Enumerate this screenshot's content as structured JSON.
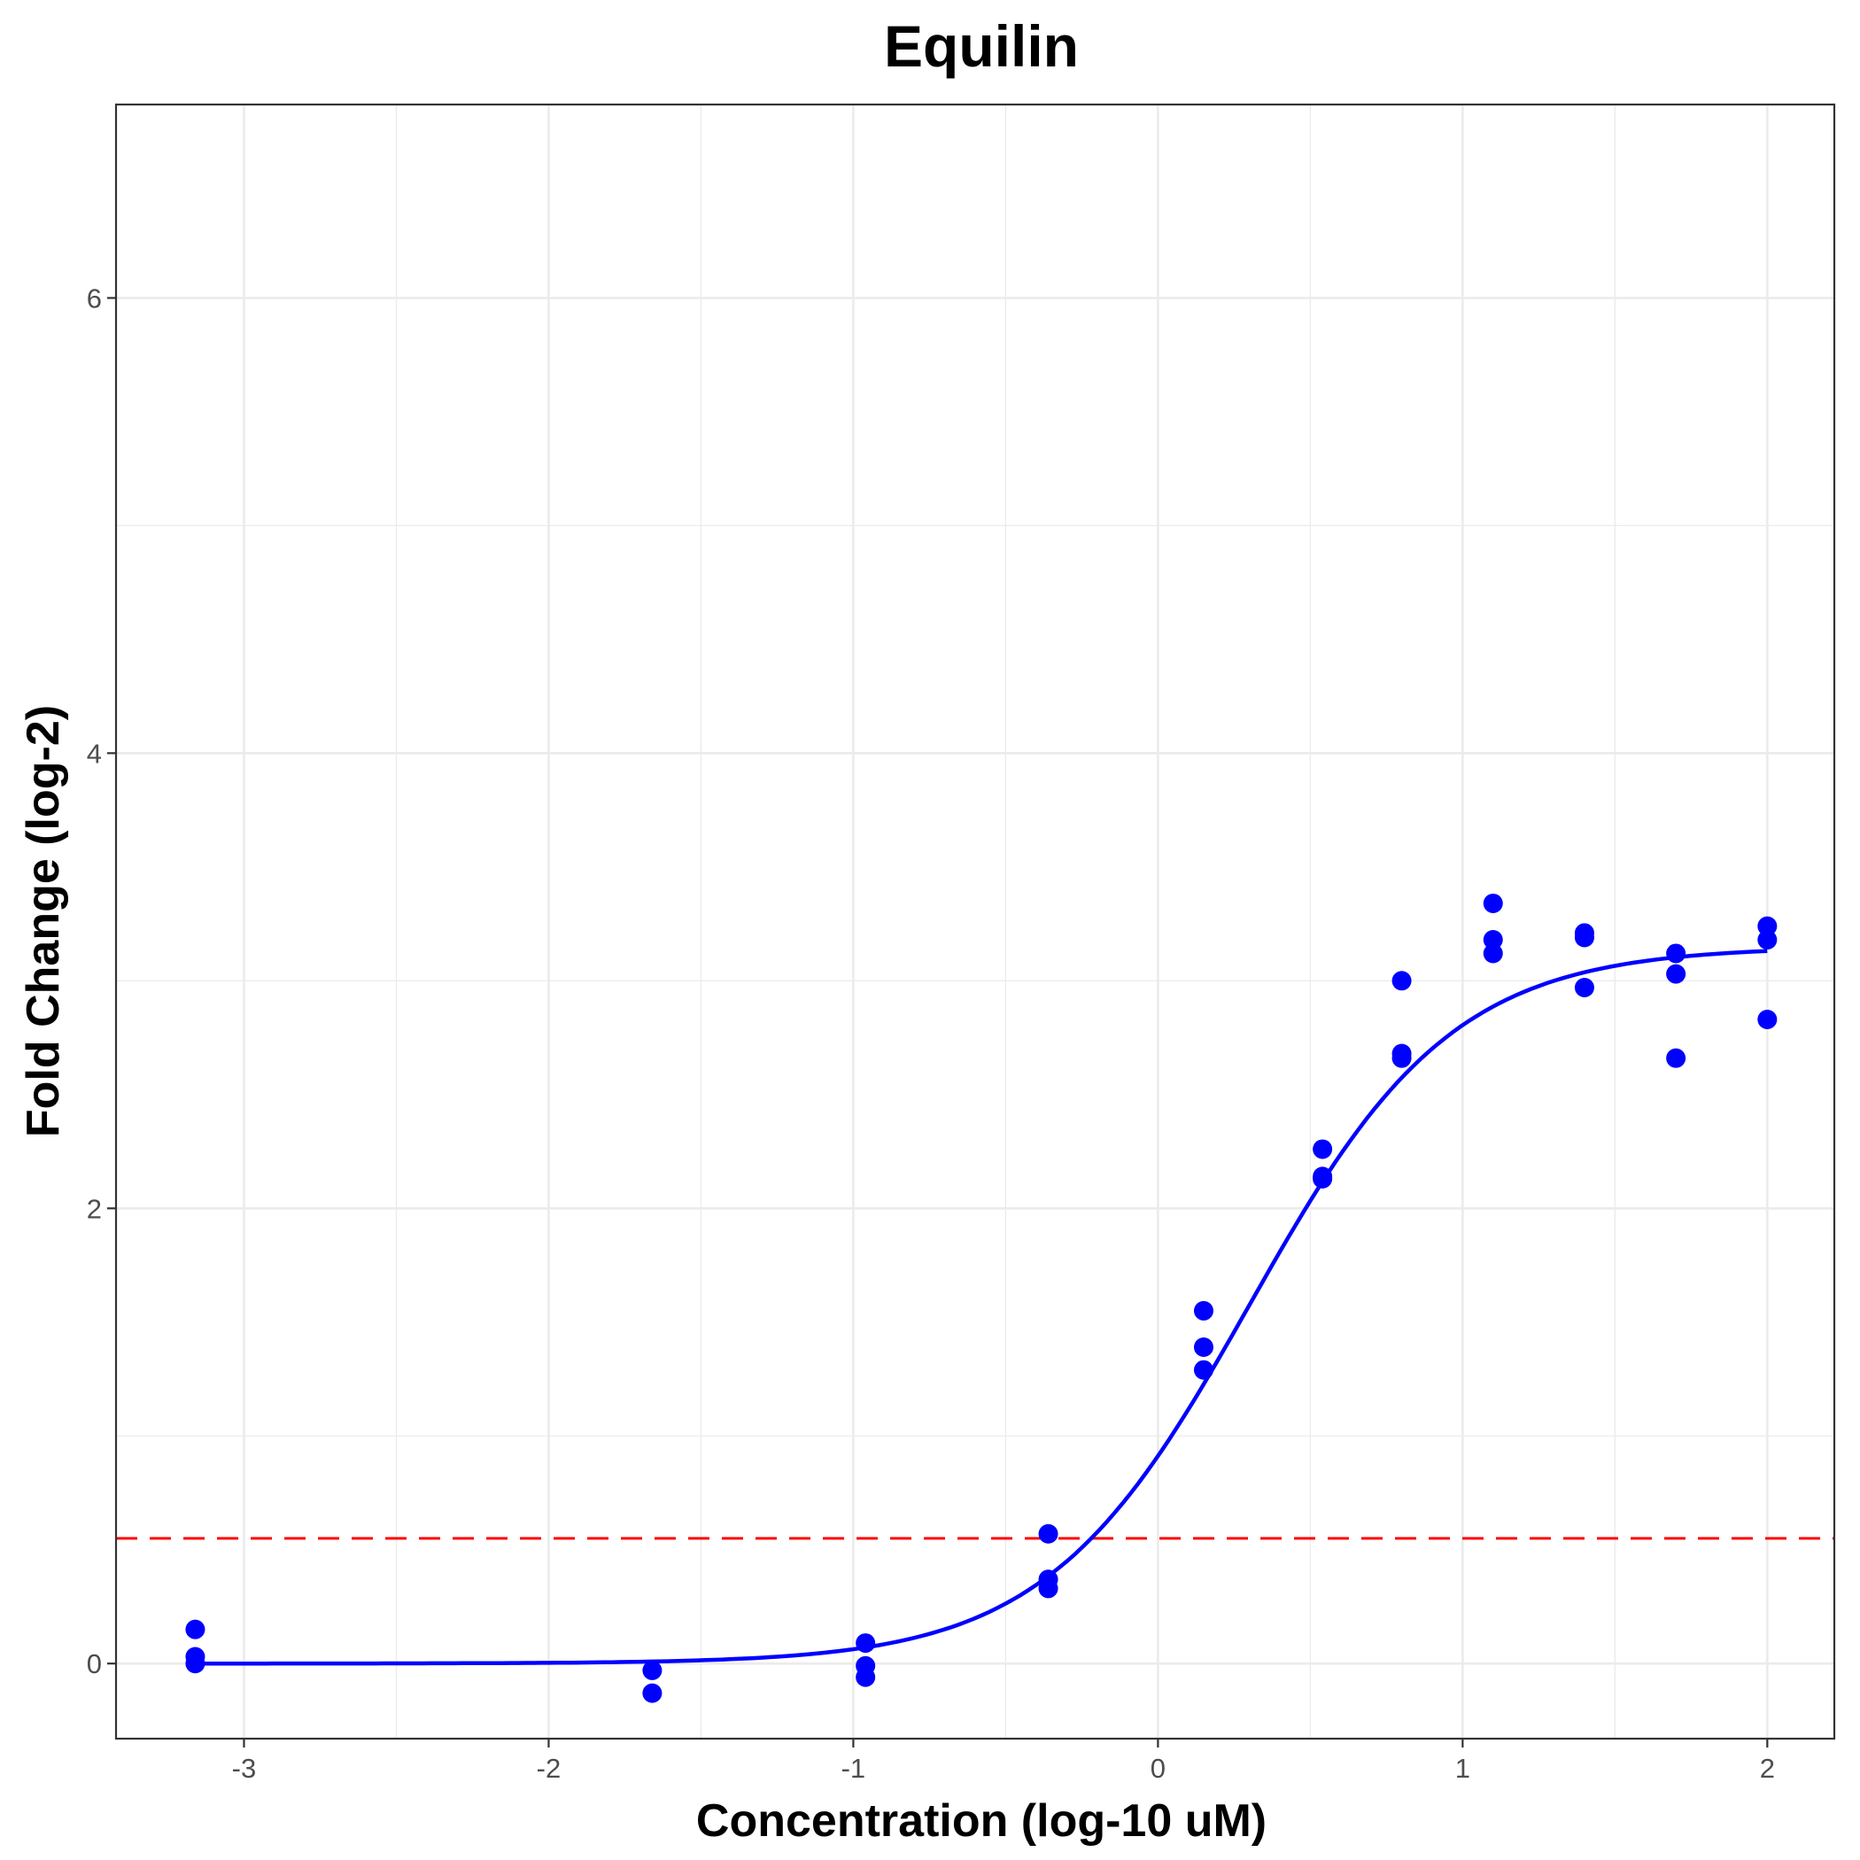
{
  "chart_data": {
    "type": "scatter",
    "title": "Equilin",
    "xlabel": "Concentration (log-10 uM)",
    "ylabel": "Fold Change (log-2)",
    "xlim": [
      -3.42,
      2.22
    ],
    "ylim": [
      -0.33,
      6.85
    ],
    "x_ticks": [
      -3,
      -2,
      -1,
      0,
      1,
      2
    ],
    "x_tick_labels": [
      "-3",
      "-2",
      "-1",
      "0",
      "1",
      "2"
    ],
    "y_ticks": [
      0,
      2,
      4,
      6
    ],
    "y_tick_labels": [
      "0",
      "2",
      "4",
      "6"
    ],
    "grid": true,
    "legend": "none",
    "colors": {
      "points": "#0000ff",
      "fit": "#0000ff",
      "threshold": "#ff0000"
    },
    "points": {
      "x": [
        -3.16,
        -3.16,
        -3.16,
        -1.66,
        -1.66,
        -0.96,
        -0.96,
        -0.96,
        -0.36,
        -0.36,
        -0.36,
        0.15,
        0.15,
        0.15,
        0.54,
        0.54,
        0.54,
        0.8,
        0.8,
        0.8,
        1.1,
        1.1,
        1.1,
        1.4,
        1.4,
        1.4,
        1.7,
        1.7,
        1.7,
        2.0,
        2.0,
        2.0
      ],
      "y": [
        0.15,
        0.03,
        0.0,
        -0.03,
        -0.13,
        0.09,
        -0.01,
        -0.06,
        0.57,
        0.37,
        0.33,
        1.55,
        1.39,
        1.29,
        2.26,
        2.13,
        2.14,
        3.0,
        2.66,
        2.68,
        3.34,
        3.18,
        3.12,
        3.21,
        3.19,
        2.97,
        3.12,
        3.03,
        2.66,
        3.24,
        3.18,
        2.83
      ]
    },
    "fit_curve": {
      "model": "4-parameter logistic",
      "bottom": 0.0,
      "top": 3.15,
      "ec50_log": 0.3,
      "hill_slope": 1.3
    },
    "threshold_line": {
      "y": 0.55,
      "style": "dashed"
    }
  }
}
